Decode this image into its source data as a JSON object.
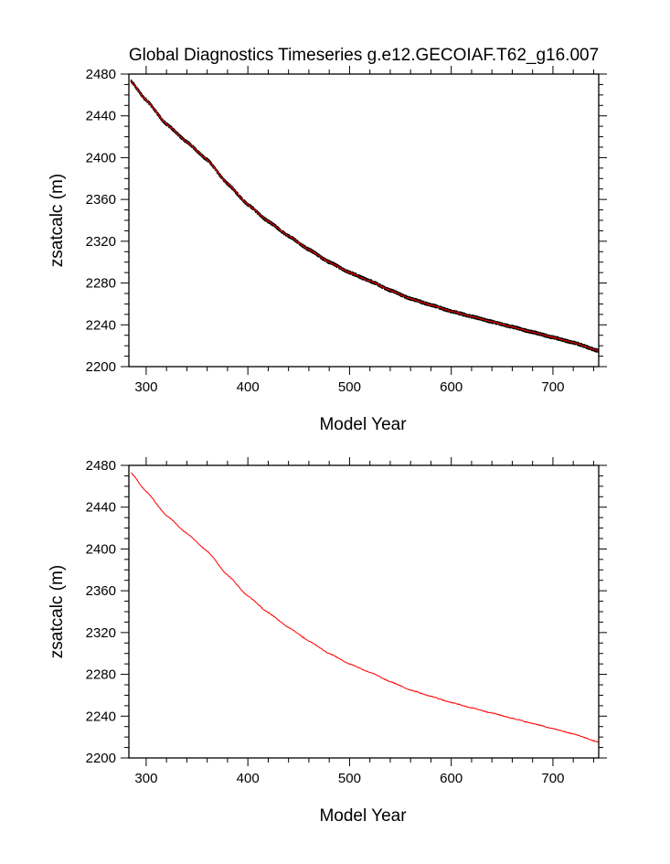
{
  "title": "Global Diagnostics Timeseries g.e12.GECOIAF.T62_g16.007",
  "chart_data": [
    {
      "type": "line",
      "xlabel": "Model Year",
      "ylabel": "zsatcalc (m)",
      "xlim": [
        283,
        745
      ],
      "ylim": [
        2200,
        2480
      ],
      "xticks": [
        300,
        400,
        500,
        600,
        700
      ],
      "yticks": [
        2200,
        2240,
        2280,
        2320,
        2360,
        2400,
        2440,
        2480
      ],
      "grid": false,
      "series": [
        {
          "style": "noisy-monthly",
          "color": "#000000",
          "x": [
            285,
            300,
            320,
            340,
            360,
            380,
            400,
            420,
            440,
            460,
            480,
            500,
            520,
            540,
            560,
            580,
            600,
            620,
            640,
            660,
            680,
            700,
            720,
            745
          ],
          "values": [
            2473,
            2455,
            2432,
            2415,
            2398,
            2375,
            2355,
            2339,
            2325,
            2312,
            2300,
            2290,
            2282,
            2273,
            2265,
            2259,
            2253,
            2248,
            2243,
            2238,
            2233,
            2228,
            2223,
            2215
          ]
        },
        {
          "style": "smoothed",
          "color": "#ff0000",
          "x": [
            285,
            300,
            320,
            340,
            360,
            380,
            400,
            420,
            440,
            460,
            480,
            500,
            520,
            540,
            560,
            580,
            600,
            620,
            640,
            660,
            680,
            700,
            720,
            745
          ],
          "values": [
            2473,
            2455,
            2432,
            2415,
            2398,
            2375,
            2355,
            2339,
            2325,
            2312,
            2300,
            2290,
            2282,
            2273,
            2265,
            2259,
            2253,
            2248,
            2243,
            2238,
            2233,
            2228,
            2223,
            2215
          ]
        }
      ]
    },
    {
      "type": "line",
      "xlabel": "Model Year",
      "ylabel": "zsatcalc (m)",
      "xlim": [
        283,
        745
      ],
      "ylim": [
        2200,
        2480
      ],
      "xticks": [
        300,
        400,
        500,
        600,
        700
      ],
      "yticks": [
        2200,
        2240,
        2280,
        2320,
        2360,
        2400,
        2440,
        2480
      ],
      "grid": false,
      "series": [
        {
          "style": "smoothed",
          "color": "#ff0000",
          "x": [
            285,
            300,
            320,
            340,
            360,
            380,
            400,
            420,
            440,
            460,
            480,
            500,
            520,
            540,
            560,
            580,
            600,
            620,
            640,
            660,
            680,
            700,
            720,
            745
          ],
          "values": [
            2473,
            2455,
            2432,
            2415,
            2398,
            2375,
            2355,
            2339,
            2325,
            2312,
            2300,
            2290,
            2282,
            2273,
            2265,
            2259,
            2253,
            2248,
            2243,
            2238,
            2233,
            2228,
            2223,
            2215
          ]
        }
      ]
    }
  ]
}
